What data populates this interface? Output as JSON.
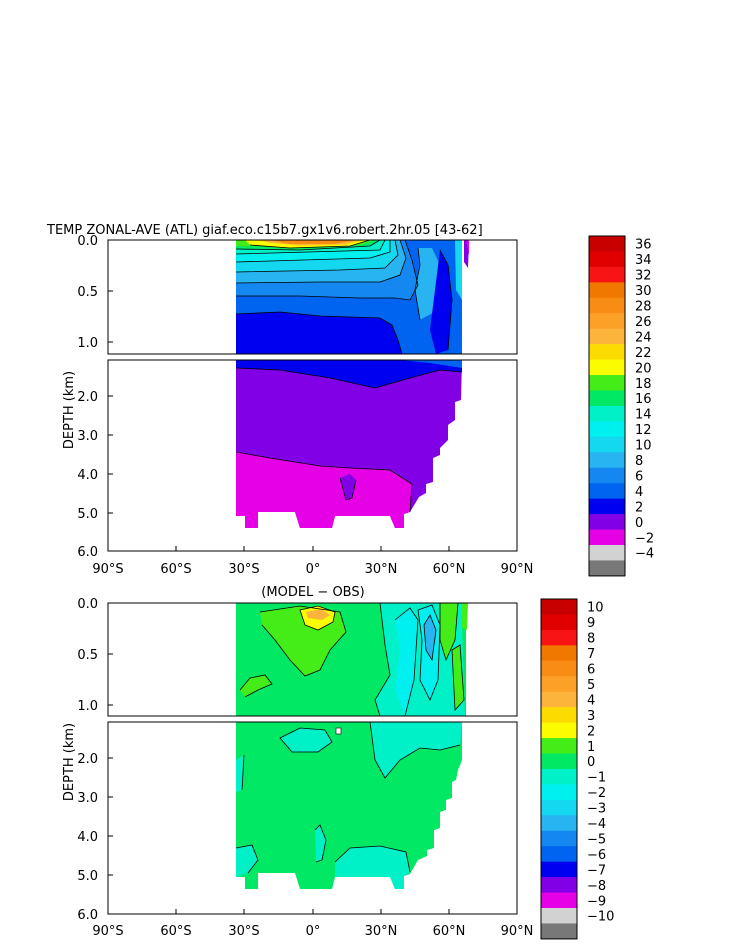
{
  "chart_data": [
    {
      "type": "heatmap",
      "title": "TEMP ZONAL-AVE (ATL) giaf.eco.c15b7.gx1v6.robert.2hr.05 [43-62]",
      "ylabel": "DEPTH (km)",
      "xlim": [
        -90,
        90
      ],
      "ylim_km": [
        0,
        6
      ],
      "x_ticks": [
        "90°S",
        "60°S",
        "30°S",
        "0°",
        "30°N",
        "60°N",
        "90°N"
      ],
      "y_ticks": [
        "0.0",
        "0.5",
        "1.0",
        "2.0",
        "3.0",
        "4.0",
        "5.0",
        "6.0"
      ],
      "colorbar": {
        "labels": [
          "36",
          "34",
          "32",
          "30",
          "28",
          "26",
          "24",
          "22",
          "20",
          "18",
          "16",
          "14",
          "12",
          "10",
          "8",
          "6",
          "4",
          "2",
          "0",
          "−2",
          "−4"
        ],
        "colors": [
          "#c80000",
          "#e00000",
          "#f81414",
          "#f07800",
          "#f88c14",
          "#fca028",
          "#fcb43c",
          "#fcdc00",
          "#fcfc00",
          "#44ec18",
          "#00e864",
          "#00f0c8",
          "#00f0f0",
          "#14d8f0",
          "#28b4f0",
          "#1488f0",
          "#0064f0",
          "#0000f0",
          "#8200e6",
          "#e600e6",
          "#d2d2d2",
          "#787878"
        ]
      }
    },
    {
      "type": "heatmap",
      "title": "(MODEL − OBS)",
      "ylabel": "DEPTH (km)",
      "xlim": [
        -90,
        90
      ],
      "ylim_km": [
        0,
        6
      ],
      "x_ticks": [
        "90°S",
        "60°S",
        "30°S",
        "0°",
        "30°N",
        "60°N",
        "90°N"
      ],
      "y_ticks": [
        "0.0",
        "0.5",
        "1.0",
        "2.0",
        "3.0",
        "4.0",
        "5.0",
        "6.0"
      ],
      "colorbar": {
        "labels": [
          "10",
          "9",
          "8",
          "7",
          "6",
          "5",
          "4",
          "3",
          "2",
          "1",
          "0",
          "−1",
          "−2",
          "−3",
          "−4",
          "−5",
          "−6",
          "−7",
          "−8",
          "−9",
          "−10"
        ],
        "colors": [
          "#c80000",
          "#e00000",
          "#f81414",
          "#f07800",
          "#f88c14",
          "#fca028",
          "#fcb43c",
          "#fcdc00",
          "#fcfc00",
          "#44ec18",
          "#00e864",
          "#00f0c8",
          "#00f0f0",
          "#14d8f0",
          "#28b4f0",
          "#1488f0",
          "#0064f0",
          "#0000f0",
          "#8200e6",
          "#e600e6",
          "#d2d2d2",
          "#787878"
        ]
      }
    }
  ]
}
